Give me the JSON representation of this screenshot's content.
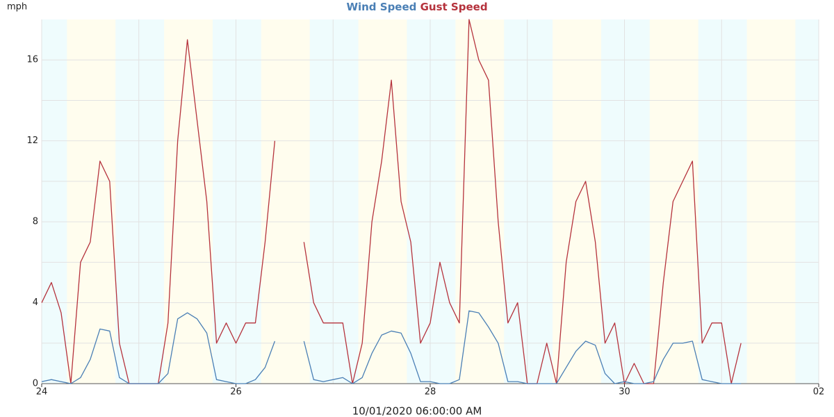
{
  "chart_data": {
    "type": "line",
    "y_label": "mph",
    "x_label": "10/01/2020 06:00:00 AM",
    "x": [
      24,
      24.1,
      24.2,
      24.3,
      24.4,
      24.5,
      24.6,
      24.7,
      24.8,
      24.9,
      25,
      25.1,
      25.2,
      25.3,
      25.4,
      25.5,
      25.6,
      25.7,
      25.8,
      25.9,
      26,
      26.1,
      26.2,
      26.3,
      26.4,
      26.5,
      26.6,
      26.7,
      26.8,
      26.9,
      27,
      27.1,
      27.2,
      27.3,
      27.4,
      27.5,
      27.6,
      27.7,
      27.8,
      27.9,
      28,
      28.1,
      28.2,
      28.3,
      28.4,
      28.5,
      28.6,
      28.7,
      28.8,
      28.9,
      29,
      29.1,
      29.2,
      29.3,
      29.4,
      29.5,
      29.6,
      29.7,
      29.8,
      29.9,
      30,
      30.1,
      30.2,
      30.3,
      30.4,
      30.5,
      30.6,
      30.7,
      30.8,
      30.9,
      31,
      31.1,
      31.2
    ],
    "series": [
      {
        "name": "Wind Speed",
        "color": "#4a7fb5",
        "values": [
          0.1,
          0.2,
          0.1,
          0,
          0.3,
          1.2,
          2.7,
          2.6,
          0.3,
          0,
          0,
          0,
          0,
          0.5,
          3.2,
          3.5,
          3.2,
          2.5,
          0.2,
          0.1,
          0,
          0,
          0.2,
          0.8,
          2.1,
          null,
          null,
          2.1,
          0.2,
          0.1,
          0.2,
          0.3,
          0,
          0.3,
          1.5,
          2.4,
          2.6,
          2.5,
          1.5,
          0.1,
          0.1,
          0,
          0,
          0.2,
          3.6,
          3.5,
          2.8,
          2,
          0.1,
          0.1,
          0,
          0,
          0,
          0,
          0.8,
          1.6,
          2.1,
          1.9,
          0.5,
          0,
          0.1,
          0,
          0,
          0.1,
          1.2,
          2,
          2,
          2.1,
          0.2,
          0.1,
          0,
          0,
          0
        ]
      },
      {
        "name": "Gust Speed",
        "color": "#b5323c",
        "values": [
          4,
          5,
          3.5,
          0,
          6,
          7,
          11,
          10,
          2,
          0,
          0,
          0,
          0,
          3,
          12,
          17,
          13,
          9,
          2,
          3,
          2,
          3,
          3,
          7,
          12,
          null,
          null,
          7,
          4,
          3,
          3,
          3,
          0,
          2,
          8,
          11,
          15,
          9,
          7,
          2,
          3,
          6,
          4,
          3,
          18,
          16,
          15,
          8,
          3,
          4,
          0,
          0,
          2,
          0,
          6,
          9,
          10,
          7,
          2,
          3,
          0,
          1,
          0,
          0,
          5,
          9,
          10,
          11,
          2,
          3,
          3,
          0,
          2
        ]
      }
    ],
    "xlim": [
      24,
      32
    ],
    "xticks": [
      24,
      26,
      28,
      30,
      {
        "value": 32,
        "label": "02"
      }
    ],
    "xgrid": [
      25,
      27,
      29,
      31
    ],
    "ylim": [
      0,
      18
    ],
    "yticks": [
      0,
      4,
      8,
      12,
      16
    ],
    "ygrid": [
      2,
      6,
      10,
      14
    ],
    "grid": true,
    "night_color": "#effcfd",
    "day_color": "#fffdee",
    "day_periods": [
      [
        24.26,
        24.76
      ],
      [
        25.26,
        25.76
      ],
      [
        26.26,
        26.76
      ],
      [
        27.26,
        27.76
      ],
      [
        28.26,
        28.76
      ],
      [
        29.26,
        29.76
      ],
      [
        30.26,
        30.76
      ],
      [
        31.26,
        31.76
      ]
    ]
  }
}
